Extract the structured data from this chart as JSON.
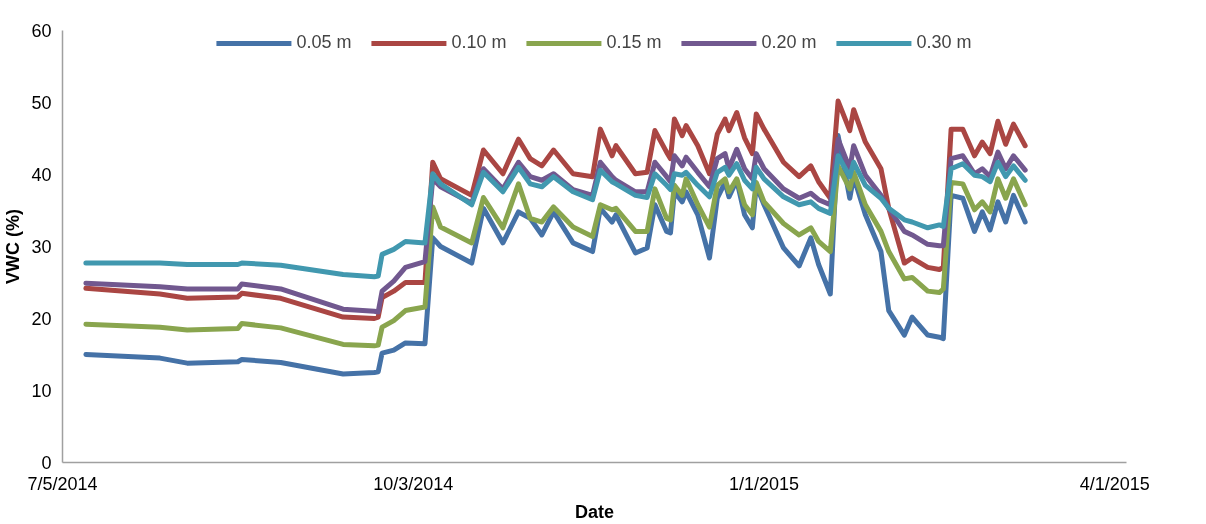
{
  "chart_data": {
    "type": "line",
    "xlabel": "Date",
    "ylabel": "VWC (%)",
    "x": [
      "2014-07-11",
      "2014-07-30",
      "2014-08-06",
      "2014-08-19",
      "2014-08-20",
      "2014-08-30",
      "2014-09-15",
      "2014-09-23",
      "2014-09-24",
      "2014-09-25",
      "2014-09-28",
      "2014-10-01",
      "2014-10-06",
      "2014-10-08",
      "2014-10-10",
      "2014-10-18",
      "2014-10-21",
      "2014-10-26",
      "2014-10-30",
      "2014-11-02",
      "2014-11-05",
      "2014-11-08",
      "2014-11-13",
      "2014-11-18",
      "2014-11-20",
      "2014-11-23",
      "2014-11-24",
      "2014-11-29",
      "2014-12-02",
      "2014-12-04",
      "2014-12-07",
      "2014-12-08",
      "2014-12-09",
      "2014-12-11",
      "2014-12-12",
      "2014-12-15",
      "2014-12-18",
      "2014-12-20",
      "2014-12-22",
      "2014-12-23",
      "2014-12-25",
      "2014-12-27",
      "2014-12-29",
      "2014-12-30",
      "2015-01-01",
      "2015-01-06",
      "2015-01-10",
      "2015-01-13",
      "2015-01-15",
      "2015-01-18",
      "2015-01-20",
      "2015-01-23",
      "2015-01-24",
      "2015-01-27",
      "2015-01-31",
      "2015-02-02",
      "2015-02-06",
      "2015-02-08",
      "2015-02-12",
      "2015-02-15",
      "2015-02-16",
      "2015-02-18",
      "2015-02-21",
      "2015-02-24",
      "2015-02-26",
      "2015-02-28",
      "2015-03-02",
      "2015-03-04",
      "2015-03-06",
      "2015-03-09"
    ],
    "series": [
      {
        "name": "0.05 m",
        "color": "#4572a7",
        "values": [
          15.0,
          14.5,
          13.8,
          14.0,
          14.3,
          13.9,
          12.3,
          12.5,
          12.6,
          15.2,
          15.6,
          16.6,
          16.5,
          31.2,
          30.0,
          27.7,
          35.3,
          30.5,
          34.8,
          33.9,
          31.6,
          34.8,
          30.5,
          29.3,
          35.3,
          33.4,
          34.4,
          29.1,
          29.8,
          35.8,
          32.1,
          31.9,
          37.6,
          36.2,
          37.6,
          34.4,
          28.4,
          36.7,
          38.9,
          36.9,
          39.2,
          34.4,
          32.6,
          38.5,
          35.8,
          29.8,
          27.3,
          31.2,
          27.5,
          23.4,
          45.4,
          36.7,
          39.7,
          34.4,
          29.3,
          21.1,
          17.7,
          20.2,
          17.7,
          17.4,
          17.2,
          37.1,
          36.7,
          32.1,
          34.8,
          32.3,
          36.2,
          33.4,
          37.1,
          33.4
        ]
      },
      {
        "name": "0.10 m",
        "color": "#aa4643",
        "values": [
          24.2,
          23.4,
          22.8,
          23.0,
          23.5,
          22.8,
          20.2,
          20.0,
          20.2,
          22.9,
          23.8,
          25.0,
          25.0,
          41.7,
          39.4,
          37.1,
          43.4,
          40.1,
          44.9,
          42.2,
          41.2,
          43.4,
          40.1,
          39.7,
          46.3,
          42.6,
          44.0,
          40.1,
          40.3,
          46.1,
          43.1,
          42.2,
          47.7,
          45.4,
          46.8,
          44.0,
          40.1,
          45.6,
          47.7,
          46.1,
          48.6,
          45.1,
          42.9,
          48.4,
          46.3,
          41.7,
          39.7,
          41.2,
          39.0,
          36.7,
          50.2,
          46.1,
          49.0,
          44.5,
          40.8,
          35.3,
          27.7,
          28.4,
          27.1,
          26.8,
          27.1,
          46.3,
          46.3,
          42.6,
          44.5,
          42.9,
          47.4,
          44.2,
          47.0,
          44.0
        ]
      },
      {
        "name": "0.15 m",
        "color": "#89a54e",
        "values": [
          19.2,
          18.8,
          18.4,
          18.6,
          19.3,
          18.7,
          16.4,
          16.2,
          16.3,
          18.8,
          19.7,
          21.1,
          21.6,
          35.5,
          32.7,
          30.5,
          36.8,
          32.6,
          38.7,
          33.9,
          33.4,
          35.5,
          32.7,
          31.4,
          35.8,
          35.1,
          35.3,
          32.1,
          32.1,
          38.0,
          33.9,
          33.7,
          38.5,
          37.1,
          39.4,
          35.8,
          32.7,
          38.5,
          39.4,
          37.6,
          39.4,
          35.8,
          34.4,
          38.9,
          36.2,
          33.2,
          31.6,
          32.6,
          30.7,
          29.3,
          41.2,
          38.0,
          40.3,
          35.8,
          32.1,
          29.3,
          25.5,
          25.7,
          23.8,
          23.6,
          24.1,
          38.9,
          38.7,
          35.1,
          36.2,
          34.8,
          39.4,
          36.7,
          39.4,
          35.8
        ]
      },
      {
        "name": "0.20 m",
        "color": "#71588f",
        "values": [
          24.9,
          24.4,
          24.1,
          24.1,
          24.8,
          24.1,
          21.3,
          21.0,
          20.9,
          23.8,
          25.2,
          27.1,
          27.9,
          39.4,
          38.3,
          36.0,
          40.8,
          38.0,
          41.7,
          39.7,
          39.2,
          40.1,
          37.9,
          37.1,
          41.7,
          39.7,
          39.2,
          37.6,
          37.6,
          41.7,
          39.7,
          39.0,
          42.6,
          41.2,
          42.4,
          40.3,
          38.3,
          42.2,
          42.9,
          40.8,
          43.5,
          40.8,
          39.4,
          42.9,
          40.8,
          38.0,
          36.7,
          37.4,
          36.5,
          35.8,
          44.9,
          40.8,
          44.0,
          39.9,
          37.1,
          35.3,
          32.1,
          31.6,
          30.3,
          30.1,
          30.1,
          42.2,
          42.6,
          40.1,
          40.8,
          39.7,
          43.1,
          40.8,
          42.6,
          40.6
        ]
      },
      {
        "name": "0.30 m",
        "color": "#4198af",
        "values": [
          27.7,
          27.7,
          27.5,
          27.5,
          27.7,
          27.4,
          26.1,
          25.8,
          25.9,
          28.9,
          29.6,
          30.7,
          30.5,
          40.1,
          38.7,
          35.8,
          40.3,
          37.6,
          41.0,
          38.7,
          38.3,
          39.7,
          37.6,
          36.5,
          40.6,
          39.0,
          38.7,
          37.1,
          36.8,
          40.1,
          38.5,
          37.9,
          40.1,
          39.9,
          40.3,
          38.5,
          36.9,
          40.3,
          41.0,
          39.9,
          41.5,
          39.2,
          38.0,
          41.0,
          39.4,
          36.9,
          35.8,
          36.2,
          35.3,
          34.6,
          42.6,
          39.7,
          41.7,
          38.5,
          36.7,
          35.3,
          33.7,
          33.4,
          32.6,
          33.0,
          32.8,
          40.8,
          41.5,
          39.9,
          39.7,
          39.0,
          41.7,
          39.7,
          41.2,
          39.2
        ]
      }
    ],
    "xlim": [
      "2014-07-05",
      "2015-04-04"
    ],
    "xticks": [
      {
        "value": "2014-07-05",
        "label": "7/5/2014"
      },
      {
        "value": "2014-10-03",
        "label": "10/3/2014"
      },
      {
        "value": "2015-01-01",
        "label": "1/1/2015"
      },
      {
        "value": "2015-04-01",
        "label": "4/1/2015"
      }
    ],
    "ylim": [
      0,
      60
    ],
    "yticks": [
      0,
      10,
      20,
      30,
      40,
      50,
      60
    ],
    "grid": false,
    "legend": "top",
    "marker": "none",
    "line_style": "solid"
  }
}
